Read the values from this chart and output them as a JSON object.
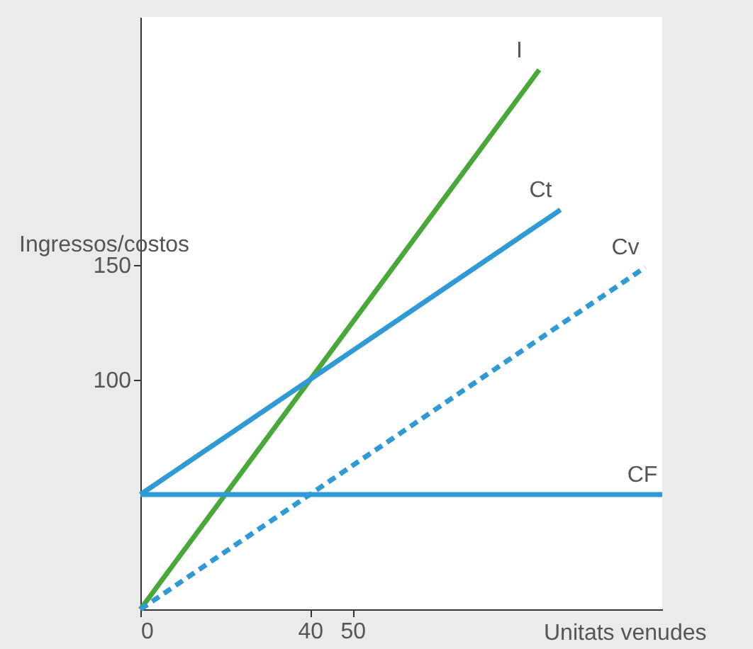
{
  "chart_data": {
    "type": "line",
    "xlabel": "Unitats venudes",
    "ylabel": "Ingressos/costos",
    "xlim": [
      0,
      123
    ],
    "ylim": [
      0,
      258
    ],
    "xticks": [
      0,
      40,
      50
    ],
    "yticks": [
      100,
      150
    ],
    "marker": "none",
    "series": [
      {
        "name": "I",
        "color": "#4aa83a",
        "x": [
          0,
          94
        ],
        "values": [
          0,
          235
        ],
        "line_style": "solid"
      },
      {
        "name": "Ct",
        "color": "#2f9ad6",
        "x": [
          0,
          99
        ],
        "values": [
          50,
          174
        ],
        "line_style": "solid"
      },
      {
        "name": "Cv",
        "color": "#2f9ad6",
        "x": [
          0,
          119
        ],
        "values": [
          0,
          149
        ],
        "line_style": "dashed"
      },
      {
        "name": "CF",
        "color": "#2f9ad6",
        "x": [
          0,
          123
        ],
        "values": [
          50,
          50
        ],
        "line_style": "solid"
      }
    ]
  }
}
